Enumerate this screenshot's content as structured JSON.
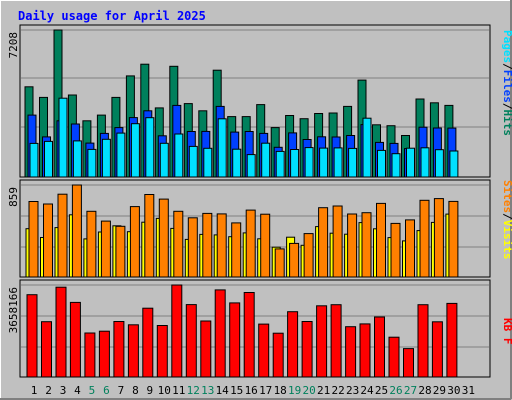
{
  "chart_data": {
    "type": "bar",
    "title": "Daily usage for April 2025",
    "categories": [
      "1",
      "2",
      "3",
      "4",
      "5",
      "6",
      "7",
      "8",
      "9",
      "10",
      "11",
      "12",
      "13",
      "14",
      "15",
      "16",
      "17",
      "18",
      "19",
      "20",
      "21",
      "22",
      "23",
      "24",
      "25",
      "26",
      "27",
      "28",
      "29",
      "30",
      "31"
    ],
    "weekend_days": [
      "5",
      "6",
      "12",
      "13",
      "19",
      "20",
      "26",
      "27"
    ],
    "panels": [
      {
        "name": "hits-files-pages",
        "ymax_label": "7208",
        "ymax": 7208,
        "right_label_parts": [
          "Pages",
          "/",
          "Files",
          "/",
          "Hits"
        ],
        "series": [
          {
            "name": "Hits",
            "color": "#00805c",
            "values": [
              4425,
              3903,
              7208,
              4022,
              2754,
              3034,
              3905,
              4959,
              5531,
              3388,
              5430,
              3598,
              3248,
              5239,
              2962,
              2963,
              3552,
              2423,
              3018,
              2859,
              3116,
              3138,
              3462,
              4753,
              2558,
              2513,
              2034,
              3825,
              3637,
              3513
            ]
          },
          {
            "name": "Files",
            "color": "#0040ff",
            "values": [
              3037,
              1968,
              2754,
              2600,
              1663,
              2136,
              2423,
              2913,
              3248,
              2019,
              3509,
              2233,
              2234,
              3462,
              2202,
              2233,
              2140,
              1455,
              2161,
              1838,
              1971,
              1962,
              2036,
              2568,
              1697,
              1647,
              1393,
              2443,
              2405,
              2397
            ]
          },
          {
            "name": "Pages",
            "color": "#00e0ff",
            "values": [
              1648,
              1745,
              3863,
              1770,
              1355,
              1848,
              2151,
              2614,
              2908,
              1650,
              2110,
              1500,
              1408,
              2854,
              1363,
              1097,
              1659,
              1255,
              1348,
              1441,
              1419,
              1427,
              1400,
              2881,
              1304,
              1141,
              1414,
              1431,
              1341,
              1276
            ]
          }
        ]
      },
      {
        "name": "visits-sites",
        "ymax_label": "859",
        "ymax": 859,
        "right_label_parts": [
          "Sites",
          "/",
          "Visits"
        ],
        "series": [
          {
            "name": "Visits",
            "color": "#ffff00",
            "values": [
              451,
              369,
              461,
              581,
              356,
              420,
              478,
              423,
              512,
              547,
              454,
              351,
              398,
              393,
              376,
              412,
              357,
              278,
              372,
              296,
              471,
              409,
              400,
              508,
              450,
              368,
              337,
              433,
              510,
              587
            ]
          },
          {
            "name": "Sites",
            "color": "#ff8000",
            "values": [
              705,
              682,
              773,
              859,
              613,
              522,
              473,
              657,
              770,
              727,
              613,
              553,
              594,
              589,
              505,
              625,
              586,
              262,
              314,
              405,
              647,
              663,
              588,
              600,
              687,
              500,
              533,
              716,
              732,
              706
            ]
          }
        ]
      },
      {
        "name": "kbytes",
        "ymax_label": "3658166",
        "ymax": 3658166,
        "right_label_parts": [
          "KB",
          " ",
          "F"
        ],
        "series": [
          {
            "name": "KBytes",
            "color": "#ff0000",
            "values": [
              3272016,
              2200000,
              3569000,
              2968000,
              1748000,
              1822000,
              2208000,
              2076000,
              2734000,
              2046000,
              3658166,
              2877000,
              2227000,
              3462000,
              2947000,
              3358000,
              2105000,
              1740000,
              2596000,
              2208000,
              2833000,
              2875000,
              1999000,
              2111000,
              2386000,
              1583000,
              1130000,
              2875000,
              2193000,
              2927000
            ]
          }
        ]
      }
    ],
    "colors": {
      "background": "#c0c0c0",
      "frame_light": "#ffffff",
      "frame_dark": "#808080",
      "grid": "#808080",
      "title": "#0000ff",
      "axis_label": "#000000",
      "day_label": "#000000",
      "weekend_label": "#00805c",
      "bar_outline": "#000000"
    }
  }
}
